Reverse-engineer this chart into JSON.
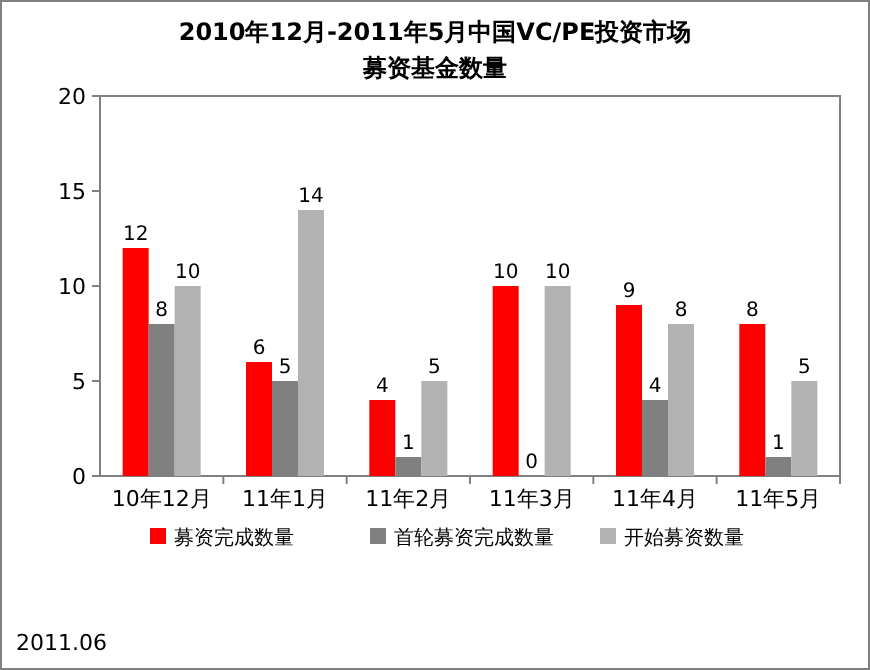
{
  "chart_data": {
    "type": "bar",
    "title": "2010年12月-2011年5月中国VC/PE投资市场",
    "subtitle": "募资基金数量",
    "categories": [
      "10年12月",
      "11年1月",
      "11年2月",
      "11年3月",
      "11年4月",
      "11年5月"
    ],
    "series": [
      {
        "name": "募资完成数量",
        "color": "#ff0000",
        "values": [
          12,
          6,
          4,
          10,
          9,
          8
        ]
      },
      {
        "name": "首轮募资完成数量",
        "color": "#808080",
        "values": [
          8,
          5,
          1,
          0,
          4,
          1
        ]
      },
      {
        "name": "开始募资数量",
        "color": "#b2b2b2",
        "values": [
          10,
          14,
          5,
          10,
          8,
          5
        ]
      }
    ],
    "ylim": [
      0,
      20
    ],
    "yticks": [
      0,
      5,
      10,
      15,
      20
    ],
    "data_labels": true,
    "legend": "bottom",
    "grid": false,
    "annotations": [
      "2011.06"
    ]
  }
}
